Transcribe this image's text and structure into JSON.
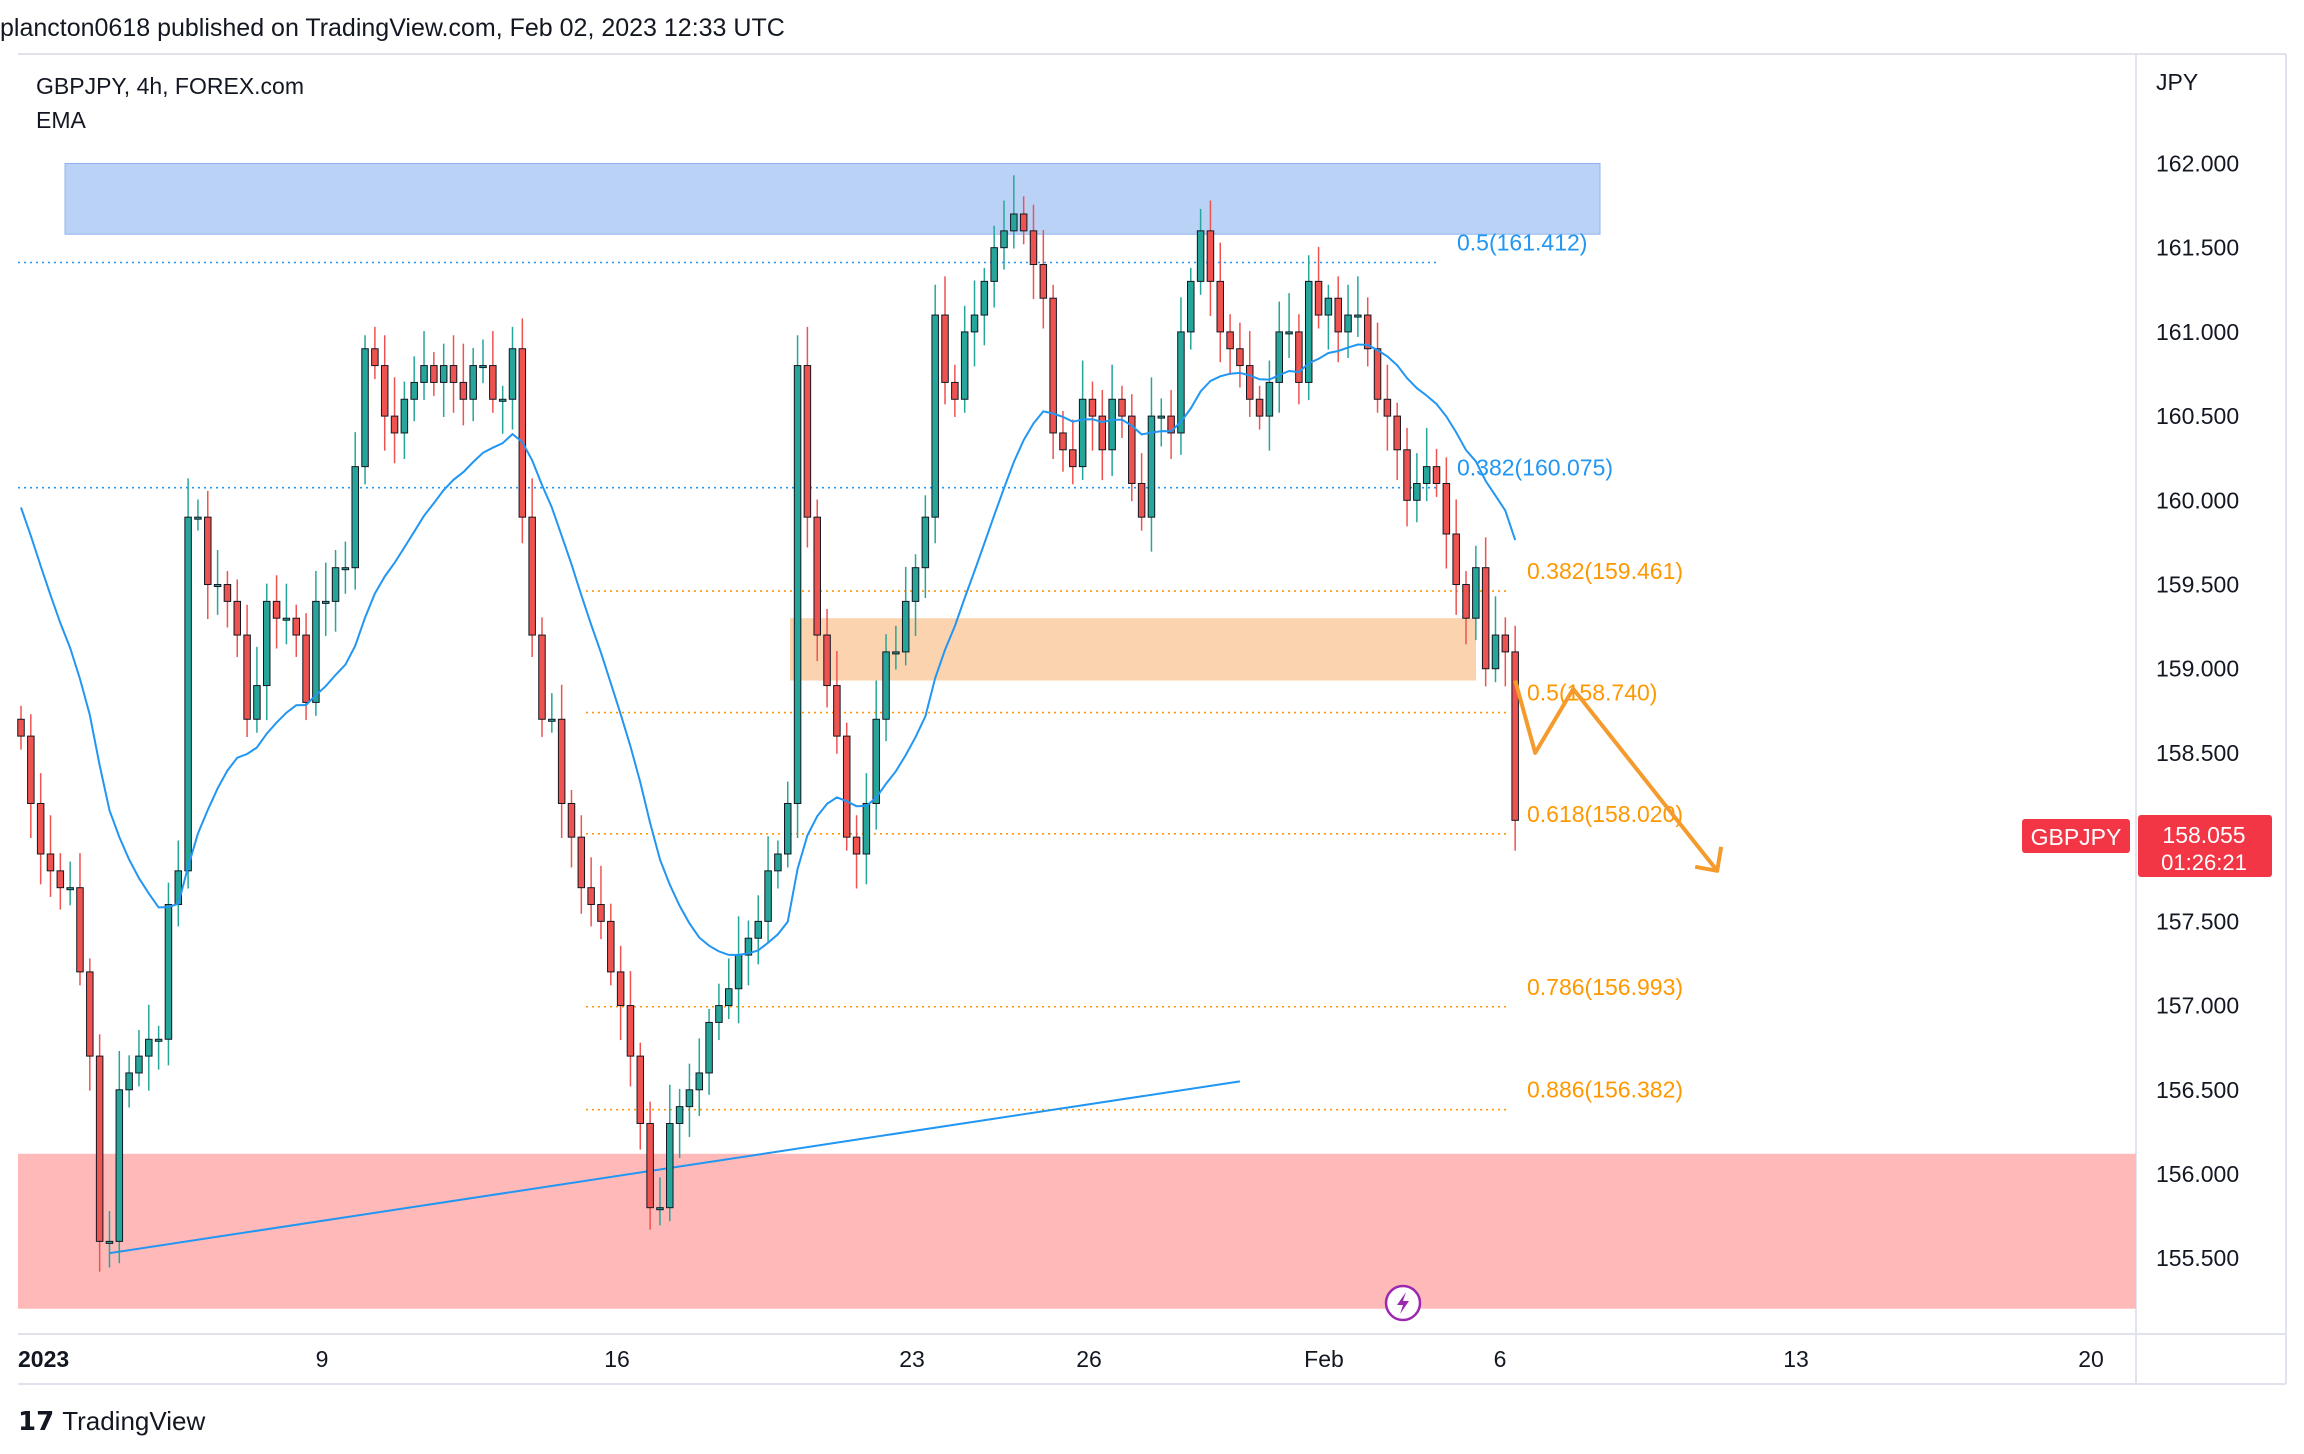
{
  "header": {
    "published_line": "plancton0618 published on TradingView.com, Feb 02, 2023 12:33 UTC"
  },
  "chart_data": {
    "type": "candlestick",
    "title": "GBPJPY, 4h, FOREX.com",
    "indicator": "EMA",
    "currency_label": "JPY",
    "y_ticks": [
      "162.000",
      "161.500",
      "161.000",
      "160.500",
      "160.000",
      "159.500",
      "159.000",
      "158.500",
      "158.000",
      "157.500",
      "157.000",
      "156.500",
      "156.000",
      "155.500"
    ],
    "y_range": [
      155.05,
      162.65
    ],
    "x_ticks": [
      "2023",
      "9",
      "16",
      "23",
      "26",
      "Feb",
      "6",
      "13",
      "20"
    ],
    "last_price": {
      "symbol": "GBPJPY",
      "value": "158.055",
      "countdown": "01:26:21"
    },
    "fib_upper": [
      {
        "label": "0.5(161.412)",
        "value": 161.412
      },
      {
        "label": "0.382(160.075)",
        "value": 160.075
      }
    ],
    "fib_lower": [
      {
        "label": "0.382(159.461)",
        "value": 159.461
      },
      {
        "label": "0.5(158.740)",
        "value": 158.74
      },
      {
        "label": "0.618(158.020)",
        "value": 158.02
      },
      {
        "label": "0.786(156.993)",
        "value": 156.993
      },
      {
        "label": "0.886(156.382)",
        "value": 156.382
      }
    ],
    "zones": [
      {
        "name": "supply",
        "top": 162.0,
        "bottom": 161.58,
        "color": "#bbd2f7"
      },
      {
        "name": "demand",
        "top": 159.3,
        "bottom": 158.93,
        "color": "#fbd3ae"
      },
      {
        "name": "support",
        "top": 156.12,
        "bottom": 155.2,
        "color": "#ffb9b9"
      }
    ],
    "closes": [
      158.6,
      158.2,
      157.9,
      157.8,
      157.7,
      157.7,
      157.2,
      156.7,
      155.6,
      155.6,
      156.5,
      156.6,
      156.7,
      156.8,
      156.8,
      157.6,
      157.8,
      159.9,
      159.9,
      159.5,
      159.5,
      159.4,
      159.2,
      158.7,
      158.9,
      159.4,
      159.3,
      159.3,
      159.2,
      158.8,
      159.4,
      159.4,
      159.6,
      159.6,
      160.2,
      160.9,
      160.8,
      160.5,
      160.4,
      160.6,
      160.7,
      160.8,
      160.7,
      160.8,
      160.7,
      160.6,
      160.8,
      160.8,
      160.6,
      160.6,
      160.9,
      159.9,
      159.2,
      158.7,
      158.7,
      158.2,
      158.0,
      157.7,
      157.6,
      157.5,
      157.2,
      157.0,
      156.7,
      156.3,
      155.8,
      155.8,
      156.3,
      156.4,
      156.5,
      156.6,
      156.9,
      157.0,
      157.1,
      157.3,
      157.4,
      157.5,
      157.8,
      157.9,
      158.2,
      160.8,
      159.9,
      159.2,
      158.9,
      158.6,
      158.0,
      157.9,
      158.2,
      158.7,
      159.1,
      159.1,
      159.4,
      159.6,
      159.9,
      161.1,
      160.7,
      160.6,
      161.0,
      161.1,
      161.3,
      161.5,
      161.6,
      161.7,
      161.6,
      161.4,
      161.2,
      160.4,
      160.3,
      160.2,
      160.6,
      160.5,
      160.3,
      160.6,
      160.5,
      160.1,
      159.9,
      160.5,
      160.5,
      160.4,
      161.0,
      161.3,
      161.6,
      161.3,
      161.0,
      160.9,
      160.8,
      160.6,
      160.5,
      160.7,
      161.0,
      161.0,
      160.7,
      161.3,
      161.1,
      161.2,
      161.0,
      161.1,
      161.1,
      160.9,
      160.6,
      160.5,
      160.3,
      160.0,
      160.1,
      160.2,
      160.1,
      159.8,
      159.5,
      159.3,
      159.6,
      159.0,
      159.2,
      159.1,
      158.1
    ],
    "trendline": {
      "from": {
        "x_index": 9,
        "value": 155.53
      },
      "to": {
        "x_index": 124,
        "value": 156.55
      }
    },
    "projection": [
      158.93,
      158.5,
      158.88,
      157.8
    ]
  },
  "footer": {
    "brand": "TradingView"
  },
  "colors": {
    "up": "#26a69a",
    "down": "#ef5350",
    "ema": "#2196f3",
    "fib_blue": "#2196f3",
    "fib_orange": "#ff9800",
    "price_tag": "#f23645",
    "projection": "#f59b2e"
  }
}
